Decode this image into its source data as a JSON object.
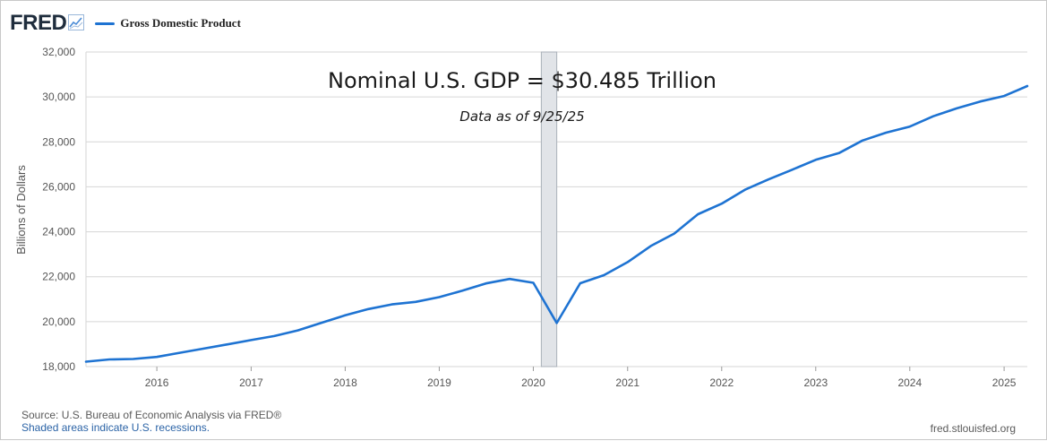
{
  "header": {
    "logo_text": "FRED",
    "logo_icon": "line-chart-icon",
    "legend_label": "Gross Domestic Product"
  },
  "footer": {
    "source": "Source: U.S. Bureau of Economic Analysis via FRED®",
    "recession_note": "Shaded areas indicate U.S. recessions.",
    "site": "fred.stlouisfed.org"
  },
  "colors": {
    "series": "#1e73d2",
    "grid": "#d6d6d6",
    "recession": "#e1e4e8"
  },
  "chart_data": {
    "type": "line",
    "title": "Nominal U.S. GDP = $30.485 Trillion",
    "subtitle": "Data as of 9/25/25",
    "ylabel": "Billions of Dollars",
    "xlabel": "",
    "ylim": [
      18000,
      32000
    ],
    "y_ticks": [
      "18,000",
      "20,000",
      "22,000",
      "24,000",
      "26,000",
      "28,000",
      "30,000",
      "32,000"
    ],
    "x_ticks": [
      "2016",
      "2017",
      "2018",
      "2019",
      "2020",
      "2021",
      "2022",
      "2023",
      "2024",
      "2025"
    ],
    "grid": true,
    "recessions": [
      {
        "start": "2020-02",
        "end": "2020-04"
      }
    ],
    "series": [
      {
        "name": "Gross Domestic Product",
        "x": [
          "2015-04-01",
          "2015-07-01",
          "2015-10-01",
          "2016-01-01",
          "2016-04-01",
          "2016-07-01",
          "2016-10-01",
          "2017-01-01",
          "2017-04-01",
          "2017-07-01",
          "2017-10-01",
          "2018-01-01",
          "2018-04-01",
          "2018-07-01",
          "2018-10-01",
          "2019-01-01",
          "2019-04-01",
          "2019-07-01",
          "2019-10-01",
          "2020-01-01",
          "2020-04-01",
          "2020-07-01",
          "2020-10-01",
          "2021-01-01",
          "2021-04-01",
          "2021-07-01",
          "2021-10-01",
          "2022-01-01",
          "2022-04-01",
          "2022-07-01",
          "2022-10-01",
          "2023-01-01",
          "2023-04-01",
          "2023-07-01",
          "2023-10-01",
          "2024-01-01",
          "2024-04-01",
          "2024-07-01",
          "2024-10-01",
          "2025-01-01",
          "2025-04-01"
        ],
        "values": [
          18220,
          18320,
          18340,
          18430,
          18620,
          18800,
          18990,
          19180,
          19360,
          19610,
          19950,
          20280,
          20560,
          20770,
          20880,
          21090,
          21380,
          21700,
          21900,
          21730,
          19940,
          21710,
          22070,
          22650,
          23370,
          23920,
          24780,
          25250,
          25870,
          26330,
          26760,
          27200,
          27500,
          28060,
          28410,
          28680,
          29140,
          29490,
          29800,
          30040,
          30485
        ]
      }
    ]
  }
}
